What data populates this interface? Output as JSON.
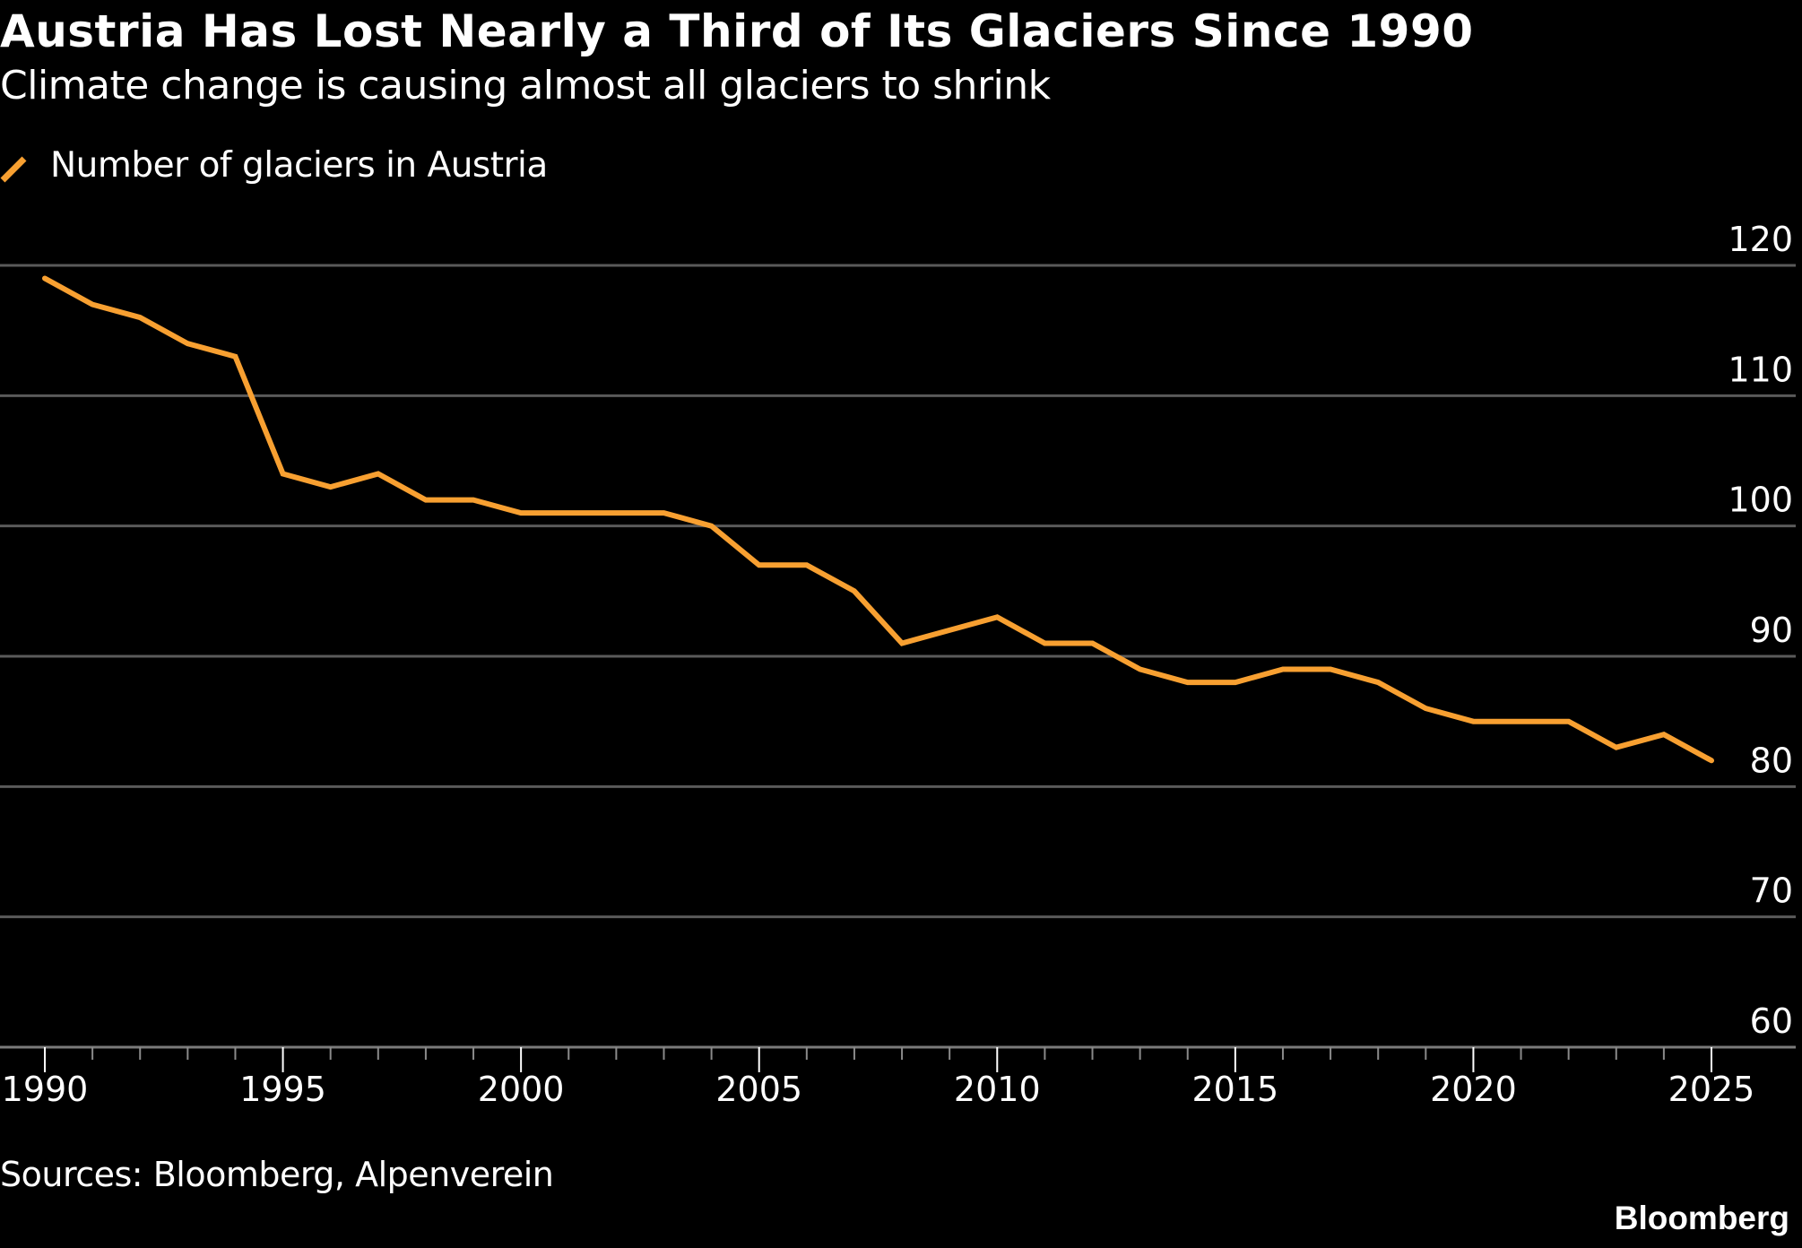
{
  "header": {
    "title": "Austria Has Lost Nearly a Third of Its Glaciers Since 1990",
    "subtitle": "Climate change is causing almost all glaciers to shrink"
  },
  "legend": [
    {
      "label": "Number of glaciers in Austria",
      "color": "#F8A031"
    }
  ],
  "footer": {
    "source": "Sources: Bloomberg, Alpenverein",
    "logo": "Bloomberg"
  },
  "chart_data": {
    "type": "line",
    "title": "Austria Has Lost Nearly a Third of Its Glaciers Since 1990",
    "subtitle": "Climate change is causing almost all glaciers to shrink",
    "xlabel": "",
    "ylabel": "",
    "x": [
      1990,
      1991,
      1992,
      1993,
      1994,
      1995,
      1996,
      1997,
      1998,
      1999,
      2000,
      2001,
      2002,
      2003,
      2004,
      2005,
      2006,
      2007,
      2008,
      2009,
      2010,
      2011,
      2012,
      2013,
      2014,
      2015,
      2016,
      2017,
      2018,
      2019,
      2020,
      2021,
      2022,
      2023,
      2024,
      2025
    ],
    "series": [
      {
        "name": "Number of glaciers in Austria",
        "color": "#F8A031",
        "values": [
          119,
          117,
          116,
          114,
          113,
          104,
          103,
          104,
          102,
          102,
          101,
          101,
          101,
          101,
          100,
          97,
          97,
          95,
          91,
          92,
          93,
          91,
          91,
          89,
          88,
          88,
          89,
          89,
          88,
          86,
          85,
          85,
          85,
          83,
          84,
          82
        ]
      }
    ],
    "xlim": [
      1990,
      2025
    ],
    "ylim": [
      60,
      120
    ],
    "x_ticks": [
      "1990",
      "1995",
      "2000",
      "2005",
      "2010",
      "2015",
      "2020",
      "2025"
    ],
    "y_ticks": [
      "60",
      "70",
      "80",
      "90",
      "100",
      "110",
      "120"
    ],
    "y_axis_side": "right",
    "grid": true,
    "legend_position": "top-left",
    "grid_color": "#5a5a5a",
    "background": "#000000"
  }
}
